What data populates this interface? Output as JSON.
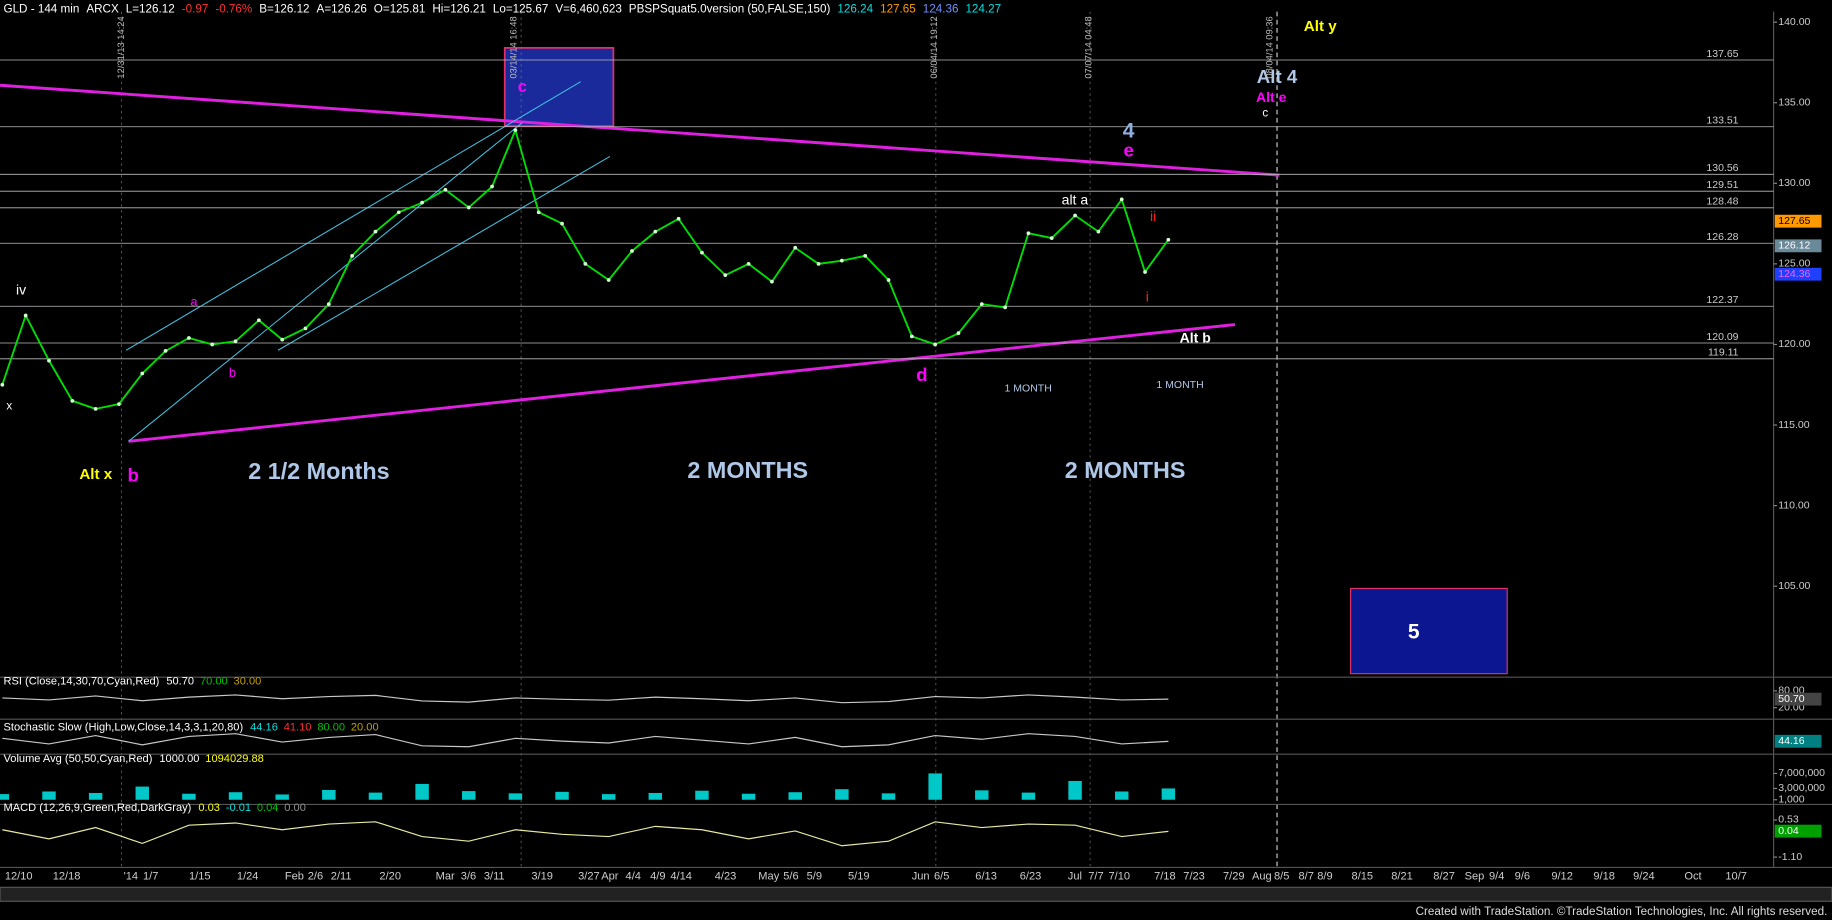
{
  "header": {
    "fields": [
      {
        "text": "GLD - 144 min",
        "color": "#ffffff"
      },
      {
        "text": "ARCX",
        "color": "#ffffff"
      },
      {
        "text": "L=126.12",
        "color": "#ffffff"
      },
      {
        "text": "-0.97",
        "color": "#ff3030"
      },
      {
        "text": "-0.76%",
        "color": "#ff3030"
      },
      {
        "text": "B=126.12",
        "color": "#ffffff"
      },
      {
        "text": "A=126.26",
        "color": "#ffffff"
      },
      {
        "text": "O=125.81",
        "color": "#ffffff"
      },
      {
        "text": "Hi=126.21",
        "color": "#ffffff"
      },
      {
        "text": "Lo=125.67",
        "color": "#ffffff"
      },
      {
        "text": "V=6,460,623",
        "color": "#ffffff"
      },
      {
        "text": "PBSPSquat5.0version (50,FALSE,150)",
        "color": "#ffffff"
      },
      {
        "text": "126.24",
        "color": "#00e0e0"
      },
      {
        "text": "127.65",
        "color": "#ff9900"
      },
      {
        "text": "124.36",
        "color": "#7090ff"
      },
      {
        "text": "124.27",
        "color": "#00e0e0"
      }
    ]
  },
  "chart_data": [
    {
      "type": "line",
      "color": "#00e000",
      "values": [
        117.5,
        121.8,
        119,
        116.5,
        116,
        116.3,
        118.2,
        119.6,
        120.4,
        120,
        120.2,
        121.5,
        120.3,
        121,
        122.5,
        125.5,
        127,
        128.2,
        128.8,
        129.6,
        128.5,
        129.8,
        133.3,
        128.2,
        127.5,
        125,
        124,
        125.8,
        127,
        127.8,
        125.7,
        124.3,
        125,
        123.9,
        126,
        125,
        125.2,
        125.5,
        124,
        120.5,
        120,
        120.7,
        122.5,
        122.3,
        126.9,
        126.6,
        128,
        127,
        129,
        124.5,
        126.5
      ],
      "ylim": [
        99.5,
        140.65
      ],
      "yticks": [
        {
          "value": 140,
          "label": "140.00"
        },
        {
          "value": 135,
          "label": "135.00"
        },
        {
          "value": 130,
          "label": "130.00"
        },
        {
          "value": 125,
          "label": "125.00"
        },
        {
          "value": 120,
          "label": "120.00"
        },
        {
          "value": 115,
          "label": "115.00"
        },
        {
          "value": 110,
          "label": "110.00"
        },
        {
          "value": 105,
          "label": "105.00"
        }
      ],
      "levels": [
        137.65,
        133.51,
        130.56,
        129.51,
        128.48,
        126.28,
        122.37,
        120.09,
        119.11
      ],
      "markers": [
        {
          "value": 127.65,
          "label": "127.65",
          "color": "#ff9900",
          "text_color": "#000000"
        },
        {
          "value": 126.12,
          "label": "126.12",
          "color": "#6a8a9a",
          "text_color": "#ffffff"
        },
        {
          "value": 124.36,
          "label": "124.36",
          "color": "#2040ff",
          "text_color": "#ff60ff"
        }
      ],
      "annotations": [
        {
          "text": "Alt y",
          "color": "#ffff00"
        },
        {
          "text": "Alt 4",
          "color": "#b0c8e8"
        },
        {
          "text": "Alt e",
          "color": "#ff00ff"
        },
        {
          "text": "c",
          "color": "#ffffff"
        },
        {
          "text": "4",
          "color": "#8fb0e0"
        },
        {
          "text": "e",
          "color": "#ff00ff"
        },
        {
          "text": "alt a",
          "color": "#ffffff"
        },
        {
          "text": "ii",
          "color": "#ff2020"
        },
        {
          "text": "i",
          "color": "#ff2020"
        },
        {
          "text": "Alt b",
          "color": "#ffffff"
        },
        {
          "text": "d",
          "color": "#ff00ff"
        },
        {
          "text": "1 MONTH",
          "color": "#b0c8e8"
        },
        {
          "text": "1 MONTH",
          "color": "#b0c8e8"
        },
        {
          "text": "2 1/2 Months",
          "color": "#b0c8e8"
        },
        {
          "text": "2 MONTHS",
          "color": "#b0c8e8"
        },
        {
          "text": "2 MONTHS",
          "color": "#b0c8e8"
        },
        {
          "text": "Alt x",
          "color": "#ffff00"
        },
        {
          "text": "b",
          "color": "#ff00ff"
        },
        {
          "text": "iv",
          "color": "#ffffff"
        },
        {
          "text": "x",
          "color": "#ffffff"
        },
        {
          "text": "a",
          "color": "#ff00ff"
        },
        {
          "text": "b",
          "color": "#ff00ff"
        },
        {
          "text": "c",
          "color": "#ff00ff"
        },
        {
          "text": "5",
          "color": "#ffffff"
        }
      ],
      "timestamps": [
        "12/31/13 14:24",
        "03/14/14 16:48",
        "06/04/14 19:12",
        "07/07/14 04:48",
        "08/04/14 09:36"
      ],
      "xtick_labels": [
        "12/10",
        "12/18",
        "'14",
        "1/7",
        "1/15",
        "1/24",
        "Feb",
        "2/6",
        "2/11",
        "2/20",
        "Mar",
        "3/6",
        "3/11",
        "3/19",
        "3/27",
        "Apr",
        "4/4",
        "4/9",
        "4/14",
        "4/23",
        "May",
        "5/6",
        "5/9",
        "5/19",
        "Jun",
        "6/5",
        "6/13",
        "6/23",
        "Jul",
        "7/7",
        "7/10",
        "7/18",
        "7/23",
        "7/29",
        "Aug",
        "8/5",
        "8/7",
        "8/9",
        "8/15",
        "8/21",
        "8/27",
        "Sep",
        "9/4",
        "9/6",
        "9/12",
        "9/18",
        "9/24",
        "Oct",
        "10/7"
      ]
    },
    {
      "type": "line",
      "title": "RSI (Close,14,30,70,Cyan,Red)",
      "header_values": [
        {
          "text": "50.70",
          "color": "#ffffff"
        },
        {
          "text": "70.00",
          "color": "#00c000"
        },
        {
          "text": "30.00",
          "color": "#c0a000"
        }
      ],
      "color": "#c8c8c8",
      "values": [
        55,
        48,
        62,
        45,
        58,
        66,
        52,
        60,
        64,
        44,
        40,
        55,
        50,
        47,
        58,
        52,
        45,
        55,
        38,
        42,
        60,
        55,
        66,
        58,
        48,
        51
      ],
      "ylim": [
        0,
        100
      ],
      "yticks": [
        {
          "value": 80,
          "label": "80.00"
        },
        {
          "value": 20,
          "label": "20.00"
        }
      ],
      "last_label": {
        "value": 50.7,
        "label": "50.70",
        "color": "#444444"
      }
    },
    {
      "type": "line",
      "title": "Stochastic Slow (High,Low,Close,14,3,3,1,20,80)",
      "header_values": [
        {
          "text": "44.16",
          "color": "#00e0e0"
        },
        {
          "text": "41.10",
          "color": "#ff3030"
        },
        {
          "text": "80.00",
          "color": "#00c000"
        },
        {
          "text": "20.00",
          "color": "#c0a000"
        }
      ],
      "color": "#c8c8c8",
      "values": [
        60,
        30,
        75,
        25,
        70,
        85,
        40,
        65,
        80,
        20,
        15,
        60,
        45,
        35,
        70,
        50,
        30,
        65,
        15,
        25,
        75,
        55,
        85,
        70,
        30,
        44
      ],
      "ylim": [
        0,
        100
      ],
      "yticks": [],
      "last_label": {
        "value": 44.16,
        "label": "44.16",
        "color": "#008080"
      }
    },
    {
      "type": "bar",
      "title": "Volume Avg (50,50,Cyan,Red)",
      "header_values": [
        {
          "text": "1000.00",
          "color": "#ffffff"
        },
        {
          "text": "1094029.88",
          "color": "#ffff00"
        }
      ],
      "color": "#00c8c8",
      "values": [
        1500000,
        2200000,
        1800000,
        3500000,
        1600000,
        2000000,
        1400000,
        2600000,
        1900000,
        4200000,
        2300000,
        1700000,
        2100000,
        1500000,
        1800000,
        2400000,
        1600000,
        2000000,
        2800000,
        1700000,
        7000000,
        2500000,
        1900000,
        5000000,
        2200000,
        3000000
      ],
      "ylim": [
        0,
        9000000
      ],
      "yticks": [
        {
          "value": 7000000,
          "label": "7,000,000"
        },
        {
          "value": 3000000,
          "label": "3,000,000"
        },
        {
          "value": 1000,
          "label": "1,000"
        }
      ]
    },
    {
      "type": "line",
      "title": "MACD (12,26,9,Green,Red,DarkGray)",
      "header_values": [
        {
          "text": "0.03",
          "color": "#ffff00"
        },
        {
          "text": "-0.01",
          "color": "#00e0e0"
        },
        {
          "text": "0.04",
          "color": "#00c000"
        },
        {
          "text": "0.00",
          "color": "#909090"
        }
      ],
      "color": "#e8e8a0",
      "values": [
        0.1,
        -0.3,
        0.2,
        -0.5,
        0.3,
        0.4,
        0.1,
        0.35,
        0.45,
        -0.2,
        -0.4,
        0.1,
        -0.1,
        -0.2,
        0.25,
        0.1,
        -0.3,
        0.05,
        -0.6,
        -0.4,
        0.45,
        0.2,
        0.35,
        0.3,
        -0.2,
        0.03
      ],
      "ylim": [
        -1.3,
        0.7
      ],
      "yticks": [
        {
          "value": 0.53,
          "label": "0.53"
        },
        {
          "value": -1.1,
          "label": "-1.10"
        }
      ],
      "last_label": {
        "value": 0.04,
        "label": "0.04",
        "color": "#00a000"
      }
    }
  ],
  "footer": "Created with TradeStation. ©TradeStation Technologies, Inc. All rights reserved."
}
